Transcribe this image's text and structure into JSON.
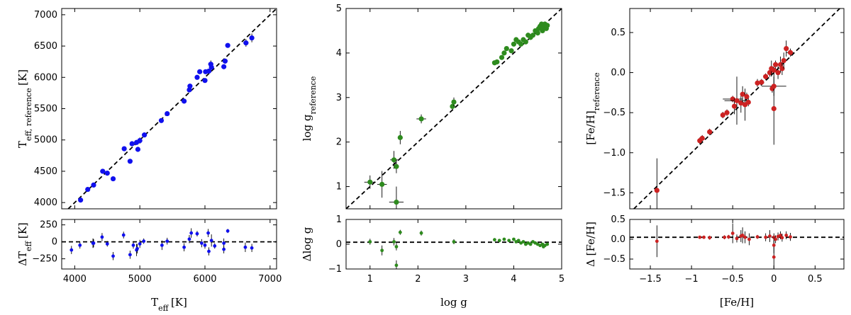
{
  "chart_data": [
    {
      "id": "teff",
      "type": "scatter",
      "color": "#1010ee",
      "main": {
        "xlim": [
          3800,
          7100
        ],
        "ylim": [
          3900,
          7100
        ],
        "xticks": [
          4000,
          5000,
          6000,
          7000
        ],
        "yticks": [
          4000,
          4500,
          5000,
          5500,
          6000,
          6500,
          7000
        ],
        "ytick_labels": [
          "4000",
          "4500",
          "5000",
          "5500",
          "6000",
          "6500",
          "7000"
        ],
        "ylabel": "T_eff, reference [K]",
        "identity_line": true,
        "points": [
          [
            4090,
            4040,
            0,
            20
          ],
          [
            4200,
            4210,
            0,
            20
          ],
          [
            4290,
            4280,
            0,
            20
          ],
          [
            4430,
            4500,
            40,
            20
          ],
          [
            4500,
            4470,
            0,
            20
          ],
          [
            4590,
            4380,
            0,
            20
          ],
          [
            4760,
            4860,
            30,
            30
          ],
          [
            4850,
            4660,
            0,
            20
          ],
          [
            4880,
            4940,
            0,
            40
          ],
          [
            4950,
            4960,
            0,
            40
          ],
          [
            4970,
            4850,
            0,
            40
          ],
          [
            5000,
            4990,
            20,
            50
          ],
          [
            5070,
            5080,
            0,
            20
          ],
          [
            5330,
            5310,
            0,
            20
          ],
          [
            5420,
            5420,
            0,
            20
          ],
          [
            5680,
            5620,
            30,
            30
          ],
          [
            5760,
            5800,
            0,
            40
          ],
          [
            5770,
            5860,
            0,
            40
          ],
          [
            5880,
            6000,
            0,
            20
          ],
          [
            5920,
            6090,
            0,
            20
          ],
          [
            6000,
            5950,
            0,
            30
          ],
          [
            6010,
            6090,
            0,
            30
          ],
          [
            6060,
            6100,
            0,
            30
          ],
          [
            6090,
            6210,
            40,
            60
          ],
          [
            6100,
            6160,
            0,
            20
          ],
          [
            6290,
            6170,
            0,
            30
          ],
          [
            6310,
            6260,
            0,
            40
          ],
          [
            6350,
            6510,
            0,
            20
          ],
          [
            6630,
            6550,
            40,
            60
          ],
          [
            6720,
            6630,
            30,
            70
          ]
        ]
      },
      "residual": {
        "ylim": [
          -400,
          330
        ],
        "yticks": [
          -250,
          0,
          250
        ],
        "ytick_labels": [
          "−250",
          "0",
          "250"
        ],
        "ylabel": "ΔT_eff [K]",
        "ref_y": 0,
        "points": [
          [
            3950,
            -120,
            0,
            60
          ],
          [
            4080,
            -50,
            0,
            50
          ],
          [
            4280,
            -20,
            0,
            70
          ],
          [
            4290,
            -20,
            0,
            60
          ],
          [
            4420,
            70,
            0,
            60
          ],
          [
            4500,
            -30,
            0,
            40
          ],
          [
            4590,
            -210,
            0,
            60
          ],
          [
            4750,
            100,
            0,
            50
          ],
          [
            4850,
            -190,
            0,
            60
          ],
          [
            4900,
            -50,
            0,
            50
          ],
          [
            4950,
            -120,
            0,
            90
          ],
          [
            4960,
            -100,
            0,
            70
          ],
          [
            5000,
            -30,
            0,
            60
          ],
          [
            5060,
            10,
            0,
            40
          ],
          [
            5340,
            -50,
            0,
            70
          ],
          [
            5420,
            10,
            0,
            50
          ],
          [
            5680,
            -80,
            0,
            60
          ],
          [
            5760,
            40,
            0,
            60
          ],
          [
            5790,
            130,
            0,
            70
          ],
          [
            5880,
            120,
            0,
            40
          ],
          [
            5950,
            -20,
            0,
            60
          ],
          [
            6000,
            -50,
            0,
            50
          ],
          [
            6050,
            130,
            0,
            60
          ],
          [
            6060,
            -140,
            0,
            60
          ],
          [
            6100,
            20,
            0,
            90
          ],
          [
            6150,
            -60,
            0,
            40
          ],
          [
            6290,
            -110,
            0,
            60
          ],
          [
            6290,
            -20,
            0,
            70
          ],
          [
            6350,
            160,
            0,
            30
          ],
          [
            6620,
            -80,
            0,
            70
          ],
          [
            6720,
            -90,
            0,
            60
          ]
        ]
      },
      "xlabel": "T_eff [K]"
    },
    {
      "id": "logg",
      "type": "scatter",
      "color": "#2e8b1e",
      "main": {
        "xlim": [
          0.5,
          5.0
        ],
        "ylim": [
          0.5,
          5.0
        ],
        "xticks": [
          1,
          2,
          3,
          4,
          5
        ],
        "yticks": [
          1,
          2,
          3,
          4,
          5
        ],
        "ytick_labels": [
          "1",
          "2",
          "3",
          "4",
          "5"
        ],
        "ylabel": "log g_reference",
        "identity_line": true,
        "points": [
          [
            1.0,
            1.1,
            0.12,
            0.15
          ],
          [
            1.25,
            1.05,
            0.1,
            0.3
          ],
          [
            1.5,
            1.6,
            0.08,
            0.2
          ],
          [
            1.55,
            1.45,
            0.05,
            0.15
          ],
          [
            1.55,
            0.65,
            0.15,
            0.35
          ],
          [
            1.63,
            2.1,
            0.05,
            0.15
          ],
          [
            2.07,
            2.52,
            0.1,
            0.1
          ],
          [
            2.72,
            2.8,
            0.05,
            0.1
          ],
          [
            2.75,
            2.9,
            0.03,
            0.1
          ],
          [
            3.6,
            3.78,
            0.05,
            0.05
          ],
          [
            3.65,
            3.8,
            0,
            0
          ],
          [
            3.75,
            3.9,
            0,
            0
          ],
          [
            3.8,
            4.0,
            0,
            0
          ],
          [
            3.85,
            4.1,
            0,
            0
          ],
          [
            3.95,
            4.05,
            0,
            0
          ],
          [
            4.0,
            4.2,
            0,
            0
          ],
          [
            4.05,
            4.3,
            0,
            0
          ],
          [
            4.1,
            4.25,
            0,
            0
          ],
          [
            4.15,
            4.2,
            0,
            0
          ],
          [
            4.2,
            4.3,
            0,
            0
          ],
          [
            4.25,
            4.25,
            0,
            0
          ],
          [
            4.3,
            4.4,
            0,
            0
          ],
          [
            4.35,
            4.35,
            0,
            0
          ],
          [
            4.4,
            4.4,
            0,
            0
          ],
          [
            4.45,
            4.5,
            0,
            0
          ],
          [
            4.5,
            4.45,
            0,
            0
          ],
          [
            4.52,
            4.55,
            0,
            0
          ],
          [
            4.55,
            4.6,
            0,
            0
          ],
          [
            4.58,
            4.65,
            0,
            0
          ],
          [
            4.6,
            4.5,
            0,
            0
          ],
          [
            4.62,
            4.58,
            0,
            0
          ],
          [
            4.65,
            4.65,
            0,
            0
          ],
          [
            4.68,
            4.55,
            0,
            0
          ],
          [
            4.7,
            4.62,
            0,
            0
          ]
        ]
      },
      "residual": {
        "ylim": [
          -1.0,
          1.0
        ],
        "yticks": [
          -1,
          0,
          1
        ],
        "ytick_labels": [
          "−1",
          "0",
          "1"
        ],
        "ylabel": "Δlog g",
        "ref_y": 0.08,
        "points": [
          [
            1.0,
            0.1,
            0,
            0.12
          ],
          [
            1.25,
            -0.25,
            0,
            0.2
          ],
          [
            1.5,
            0.1,
            0,
            0.15
          ],
          [
            1.55,
            -0.1,
            0,
            0.15
          ],
          [
            1.55,
            -0.85,
            0,
            0.2
          ],
          [
            1.63,
            0.48,
            0,
            0.1
          ],
          [
            2.07,
            0.45,
            0,
            0.1
          ],
          [
            2.75,
            0.1,
            0,
            0.1
          ],
          [
            3.6,
            0.18,
            0,
            0
          ],
          [
            3.7,
            0.15,
            0,
            0
          ],
          [
            3.8,
            0.2,
            0,
            0
          ],
          [
            3.9,
            0.15,
            0,
            0
          ],
          [
            4.0,
            0.2,
            0,
            0
          ],
          [
            4.05,
            0.1,
            0,
            0
          ],
          [
            4.1,
            0.15,
            0,
            0
          ],
          [
            4.15,
            0.05,
            0,
            0
          ],
          [
            4.2,
            0.1,
            0,
            0
          ],
          [
            4.25,
            0.0,
            0,
            0
          ],
          [
            4.3,
            0.05,
            0,
            0
          ],
          [
            4.35,
            0.0,
            0,
            0
          ],
          [
            4.4,
            0.1,
            0,
            0
          ],
          [
            4.45,
            0.05,
            0,
            0
          ],
          [
            4.5,
            0.0,
            0,
            0
          ],
          [
            4.55,
            -0.05,
            0,
            0
          ],
          [
            4.6,
            0.0,
            0,
            0
          ],
          [
            4.62,
            -0.1,
            0,
            0
          ],
          [
            4.65,
            -0.05,
            0,
            0
          ],
          [
            4.7,
            0.0,
            0,
            0
          ]
        ]
      },
      "xlabel": "log g"
    },
    {
      "id": "feh",
      "type": "scatter",
      "color": "#cc2222",
      "main": {
        "xlim": [
          -1.75,
          0.85
        ],
        "ylim": [
          -1.7,
          0.8
        ],
        "xticks": [
          -1.5,
          -1.0,
          -0.5,
          0.0,
          0.5
        ],
        "yticks": [
          -1.5,
          -1.0,
          -0.5,
          0.0,
          0.5
        ],
        "ytick_labels": [
          "−1.5",
          "−1.0",
          "−0.5",
          "0.0",
          "0.5"
        ],
        "ylabel": "[Fe/H]_reference",
        "identity_line": true,
        "points": [
          [
            -1.42,
            -1.47,
            0,
            0.4
          ],
          [
            -0.9,
            -0.85,
            0,
            0.04
          ],
          [
            -0.87,
            -0.82,
            0,
            0.04
          ],
          [
            -0.78,
            -0.74,
            0,
            0.04
          ],
          [
            -0.62,
            -0.53,
            0,
            0.04
          ],
          [
            -0.57,
            -0.5,
            0,
            0.04
          ],
          [
            -0.5,
            -0.33,
            0.12,
            0.04
          ],
          [
            -0.48,
            -0.42,
            0,
            0.1
          ],
          [
            -0.45,
            -0.35,
            0.15,
            0.3
          ],
          [
            -0.4,
            -0.38,
            0,
            0.12
          ],
          [
            -0.38,
            -0.27,
            0,
            0.1
          ],
          [
            -0.35,
            -0.4,
            0,
            0.2
          ],
          [
            -0.33,
            -0.3,
            0,
            0.05
          ],
          [
            -0.31,
            -0.37,
            0,
            0.05
          ],
          [
            -0.2,
            -0.13,
            0,
            0.05
          ],
          [
            -0.15,
            -0.12,
            0,
            0.04
          ],
          [
            -0.1,
            -0.05,
            0,
            0.04
          ],
          [
            -0.05,
            0.0,
            0,
            0.05
          ],
          [
            -0.03,
            0.05,
            0,
            0.1
          ],
          [
            -0.02,
            -0.2,
            0,
            0.05
          ],
          [
            0.0,
            0.03,
            0,
            0.05
          ],
          [
            0.0,
            -0.45,
            0,
            0.45
          ],
          [
            0.0,
            -0.17,
            0.15,
            0.12
          ],
          [
            0.02,
            0.1,
            0,
            0.05
          ],
          [
            0.05,
            0.0,
            0,
            0.08
          ],
          [
            0.08,
            0.1,
            0,
            0.1
          ],
          [
            0.1,
            0.05,
            0,
            0.08
          ],
          [
            0.12,
            0.15,
            0,
            0.1
          ],
          [
            0.15,
            0.3,
            0,
            0.1
          ],
          [
            0.2,
            0.25,
            0.05,
            0.05
          ]
        ]
      },
      "residual": {
        "ylim": [
          -0.75,
          0.5
        ],
        "yticks": [
          -0.5,
          0.0,
          0.5
        ],
        "ytick_labels": [
          "−0.5",
          "0.0",
          "0.5"
        ],
        "ylabel": "Δ [Fe/H]",
        "ref_y": 0.05,
        "points": [
          [
            -1.42,
            -0.05,
            0,
            0.4
          ],
          [
            -0.9,
            0.05,
            0,
            0.03
          ],
          [
            -0.85,
            0.05,
            0,
            0.03
          ],
          [
            -0.78,
            0.04,
            0,
            0.05
          ],
          [
            -0.6,
            0.05,
            0,
            0.05
          ],
          [
            -0.55,
            0.06,
            0,
            0.05
          ],
          [
            -0.5,
            0.15,
            0,
            0.25
          ],
          [
            -0.45,
            0.02,
            0,
            0.1
          ],
          [
            -0.4,
            0.08,
            0,
            0.15
          ],
          [
            -0.38,
            0.1,
            0,
            0.2
          ],
          [
            -0.35,
            0.05,
            0,
            0.15
          ],
          [
            -0.3,
            0.0,
            0,
            0.15
          ],
          [
            -0.2,
            0.06,
            0,
            0.05
          ],
          [
            -0.1,
            0.05,
            0,
            0.1
          ],
          [
            -0.05,
            0.08,
            0,
            0.15
          ],
          [
            0.0,
            0.05,
            0,
            0.1
          ],
          [
            0.0,
            -0.45,
            0,
            0.4
          ],
          [
            0.0,
            -0.15,
            0,
            0.2
          ],
          [
            0.02,
            0.0,
            0,
            0.1
          ],
          [
            0.05,
            0.07,
            0,
            0.1
          ],
          [
            0.08,
            0.1,
            0,
            0.1
          ],
          [
            0.1,
            0.04,
            0,
            0.1
          ],
          [
            0.15,
            0.1,
            0,
            0.1
          ],
          [
            0.2,
            0.06,
            0,
            0.1
          ]
        ]
      },
      "xlabel": "[Fe/H]"
    }
  ]
}
